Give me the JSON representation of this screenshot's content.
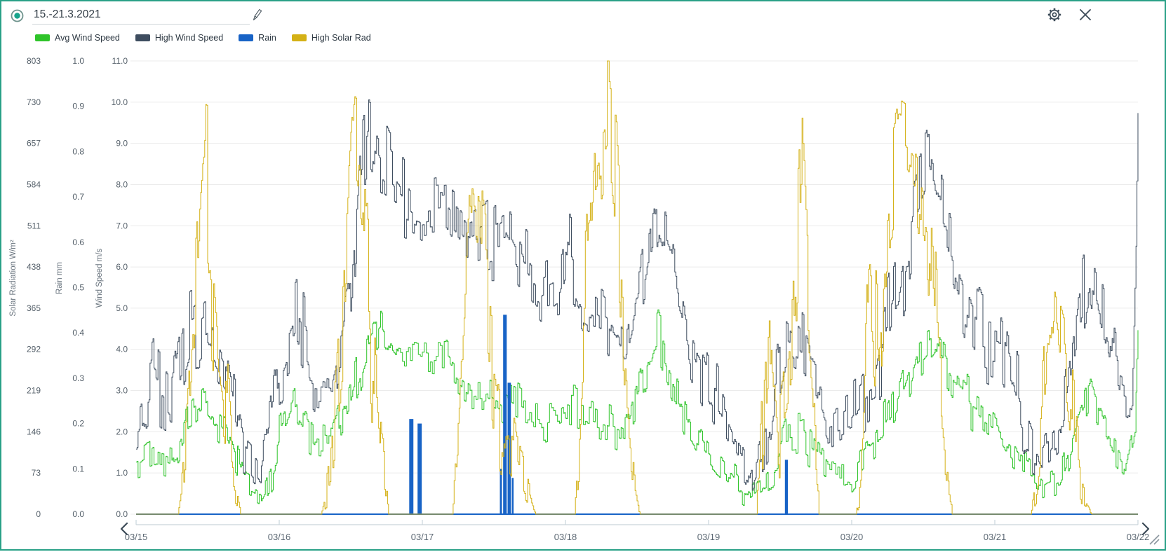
{
  "header": {
    "title_value": "15.-21.3.2021"
  },
  "legend": {
    "items": [
      {
        "label": "Avg Wind Speed",
        "color": "#2fc42a"
      },
      {
        "label": "High Wind Speed",
        "color": "#3e4d5f"
      },
      {
        "label": "Rain",
        "color": "#1863c6"
      },
      {
        "label": "High Solar Rad",
        "color": "#d4b116"
      }
    ]
  },
  "colors": {
    "accent_teal": "#2aa187",
    "icon_dark": "#3e4c59",
    "grid_line": "#ebebeb",
    "axis_line": "#c9d4db",
    "tick_text": "#55606a",
    "axis_title_text": "#6b7680",
    "date_text": "#5d6974"
  },
  "chart_data": {
    "type": "line",
    "title": "15.-21.3.2021",
    "x_axis": {
      "tick_labels": [
        "03/15",
        "03/16",
        "03/17",
        "03/18",
        "03/19",
        "03/20",
        "03/21",
        "03/22"
      ],
      "range_days": 7
    },
    "y_axes": [
      {
        "id": "solar",
        "title": "Solar Radiation W/m²",
        "min": 0,
        "max": 803,
        "ticks": [
          "803",
          "730",
          "657",
          "584",
          "511",
          "438",
          "365",
          "292",
          "219",
          "146",
          "73",
          "0"
        ]
      },
      {
        "id": "rain",
        "title": "Rain mm",
        "min": 0,
        "max": 1,
        "ticks": [
          "1.0",
          "0.9",
          "0.8",
          "0.7",
          "0.6",
          "0.5",
          "0.4",
          "0.3",
          "0.2",
          "0.1",
          "0.0"
        ]
      },
      {
        "id": "wind",
        "title": "Wind Speed m/s",
        "min": 0,
        "max": 11,
        "ticks": [
          "11.0",
          "10.0",
          "9.0",
          "8.0",
          "7.0",
          "6.0",
          "5.0",
          "4.0",
          "3.0",
          "2.0",
          "1.0",
          "0.0"
        ]
      }
    ],
    "grid": {
      "rows": 11,
      "legend_position": "top-left"
    },
    "sampling": {
      "step_minutes": 10,
      "total_hours": 168,
      "seed": 2021
    },
    "series": [
      {
        "name": "Avg Wind Speed",
        "axis": "wind",
        "color": "#2fc42a",
        "style": "step",
        "envelope": [
          [
            0,
            1.2,
            0.5
          ],
          [
            3,
            1.5,
            0.6
          ],
          [
            6,
            1.3,
            0.6
          ],
          [
            9,
            2.2,
            0.7
          ],
          [
            12,
            2.7,
            0.7
          ],
          [
            15,
            2.2,
            0.7
          ],
          [
            18,
            0.9,
            0.5
          ],
          [
            21,
            0.5,
            0.35
          ],
          [
            24,
            1.7,
            0.8
          ],
          [
            27,
            2.5,
            0.9
          ],
          [
            30,
            1.8,
            0.7
          ],
          [
            33,
            1.7,
            0.6
          ],
          [
            36,
            2.8,
            0.9
          ],
          [
            39,
            4.3,
            1.0
          ],
          [
            41,
            4.7,
            0.9
          ],
          [
            44,
            3.9,
            0.8
          ],
          [
            48,
            3.8,
            0.6
          ],
          [
            52,
            3.7,
            0.6
          ],
          [
            56,
            3.0,
            0.6
          ],
          [
            59,
            3.1,
            0.6
          ],
          [
            62,
            2.7,
            0.6
          ],
          [
            65,
            2.4,
            0.6
          ],
          [
            68,
            2.3,
            0.6
          ],
          [
            71,
            2.5,
            0.6
          ],
          [
            72,
            2.6,
            0.6
          ],
          [
            76,
            2.4,
            0.6
          ],
          [
            80,
            2.1,
            0.5
          ],
          [
            82,
            1.9,
            0.5
          ],
          [
            85,
            3.0,
            0.8
          ],
          [
            87.5,
            4.2,
            0.8
          ],
          [
            90,
            3.2,
            0.7
          ],
          [
            93,
            2.1,
            0.6
          ],
          [
            96,
            1.5,
            0.5
          ],
          [
            100,
            0.9,
            0.5
          ],
          [
            103,
            0.4,
            0.3
          ],
          [
            106,
            0.9,
            0.5
          ],
          [
            109,
            1.9,
            0.7
          ],
          [
            112,
            2.0,
            0.7
          ],
          [
            116,
            1.1,
            0.5
          ],
          [
            120,
            1.0,
            0.5
          ],
          [
            124,
            1.6,
            0.6
          ],
          [
            128,
            2.7,
            0.8
          ],
          [
            131,
            3.9,
            0.9
          ],
          [
            134,
            4.4,
            0.8
          ],
          [
            137,
            3.5,
            0.8
          ],
          [
            140,
            2.6,
            0.7
          ],
          [
            144,
            1.9,
            0.6
          ],
          [
            148,
            1.2,
            0.5
          ],
          [
            152,
            0.7,
            0.4
          ],
          [
            155,
            1.0,
            0.5
          ],
          [
            158,
            2.3,
            0.8
          ],
          [
            160,
            3.0,
            0.7
          ],
          [
            163,
            2.0,
            0.6
          ],
          [
            166,
            1.3,
            0.5
          ],
          [
            167.5,
            2.2,
            0.6
          ],
          [
            168,
            4.6,
            0.3
          ]
        ]
      },
      {
        "name": "High Wind Speed",
        "axis": "wind",
        "color": "#3e4d5f",
        "style": "step",
        "envelope": [
          [
            0,
            2.2,
            0.8
          ],
          [
            3,
            3.3,
            1.2
          ],
          [
            6,
            2.6,
            0.9
          ],
          [
            9,
            4.2,
            1.3
          ],
          [
            12,
            4.7,
            1.2
          ],
          [
            15,
            3.8,
            1.0
          ],
          [
            18,
            1.9,
            0.8
          ],
          [
            21,
            1.2,
            0.6
          ],
          [
            24,
            3.4,
            1.2
          ],
          [
            27,
            4.5,
            1.4
          ],
          [
            30,
            3.2,
            0.9
          ],
          [
            33,
            3.1,
            0.9
          ],
          [
            36,
            5.2,
            1.5
          ],
          [
            37.5,
            8.2,
            1.8
          ],
          [
            39,
            9.3,
            1.6
          ],
          [
            41,
            8.6,
            1.4
          ],
          [
            42,
            8.4,
            1.3
          ],
          [
            45,
            7.7,
            1.2
          ],
          [
            48,
            7.2,
            0.9
          ],
          [
            52,
            7.3,
            0.9
          ],
          [
            56,
            6.4,
            0.9
          ],
          [
            59,
            6.6,
            1.0
          ],
          [
            62,
            7.0,
            1.4
          ],
          [
            65,
            6.0,
            1.0
          ],
          [
            68,
            5.4,
            0.9
          ],
          [
            71,
            5.7,
            1.0
          ],
          [
            72,
            6.3,
            1.3
          ],
          [
            75,
            5.2,
            0.9
          ],
          [
            79,
            4.7,
            0.8
          ],
          [
            82,
            3.9,
            0.8
          ],
          [
            85,
            5.8,
            1.1
          ],
          [
            87.5,
            7.4,
            1.1
          ],
          [
            90,
            6.1,
            1.0
          ],
          [
            93,
            4.2,
            0.9
          ],
          [
            96,
            3.1,
            1.0
          ],
          [
            100,
            1.8,
            0.8
          ],
          [
            103,
            0.9,
            0.6
          ],
          [
            106,
            2.1,
            1.0
          ],
          [
            109,
            4.3,
            1.2
          ],
          [
            112,
            3.7,
            1.0
          ],
          [
            116,
            2.3,
            0.8
          ],
          [
            120,
            2.7,
            0.9
          ],
          [
            124,
            3.5,
            1.1
          ],
          [
            128,
            5.5,
            1.4
          ],
          [
            131,
            7.7,
            1.5
          ],
          [
            133,
            8.5,
            1.5
          ],
          [
            136,
            6.9,
            1.3
          ],
          [
            139,
            5.2,
            1.2
          ],
          [
            142,
            4.2,
            1.2
          ],
          [
            145,
            4.0,
            1.4
          ],
          [
            149,
            2.2,
            1.0
          ],
          [
            152,
            1.3,
            0.7
          ],
          [
            155,
            1.9,
            0.9
          ],
          [
            158,
            4.6,
            1.3
          ],
          [
            160,
            5.8,
            1.1
          ],
          [
            163,
            4.2,
            1.0
          ],
          [
            165,
            3.0,
            0.9
          ],
          [
            167,
            2.7,
            0.9
          ],
          [
            167.6,
            6.0,
            1.2
          ],
          [
            168,
            9.7,
            0.3
          ]
        ]
      },
      {
        "name": "Rain",
        "axis": "rain",
        "color": "#1863c6",
        "style": "bars",
        "baseline": 0,
        "events": [
          [
            45.8,
            46.5,
            0.21
          ],
          [
            47.2,
            47.9,
            0.2
          ],
          [
            61.0,
            61.35,
            0.1
          ],
          [
            61.55,
            62.15,
            0.44
          ],
          [
            62.3,
            62.85,
            0.29
          ],
          [
            63.0,
            63.3,
            0.08
          ],
          [
            108.8,
            109.3,
            0.12
          ]
        ]
      },
      {
        "name": "High Solar Rad",
        "axis": "solar",
        "color": "#d4b116",
        "style": "step",
        "envelope": [
          [
            0,
            0,
            0
          ],
          [
            7,
            0,
            0
          ],
          [
            8,
            60,
            50
          ],
          [
            10,
            330,
            180
          ],
          [
            11.5,
            600,
            170
          ],
          [
            12.5,
            540,
            240
          ],
          [
            14,
            300,
            160
          ],
          [
            16,
            90,
            70
          ],
          [
            17.5,
            0,
            0
          ],
          [
            31,
            0,
            0
          ],
          [
            32.5,
            90,
            70
          ],
          [
            34.5,
            330,
            190
          ],
          [
            36.5,
            690,
            110
          ],
          [
            38,
            640,
            160
          ],
          [
            39.5,
            380,
            200
          ],
          [
            41,
            120,
            90
          ],
          [
            42.3,
            0,
            0
          ],
          [
            53,
            0,
            0
          ],
          [
            54.5,
            220,
            150
          ],
          [
            56,
            600,
            140
          ],
          [
            58,
            490,
            200
          ],
          [
            60,
            300,
            180
          ],
          [
            62,
            180,
            130
          ],
          [
            64,
            100,
            80
          ],
          [
            66,
            30,
            30
          ],
          [
            67,
            0,
            0
          ],
          [
            73.5,
            0,
            0
          ],
          [
            75,
            260,
            180
          ],
          [
            77,
            640,
            160
          ],
          [
            79,
            690,
            120
          ],
          [
            80.5,
            490,
            220
          ],
          [
            82,
            240,
            150
          ],
          [
            83.5,
            60,
            50
          ],
          [
            84.5,
            0,
            0
          ],
          [
            104,
            0,
            0
          ],
          [
            105,
            180,
            140
          ],
          [
            106.5,
            470,
            240
          ],
          [
            108,
            150,
            120
          ],
          [
            110,
            290,
            240
          ],
          [
            111.5,
            580,
            250
          ],
          [
            113,
            230,
            170
          ],
          [
            114.5,
            0,
            0
          ],
          [
            120.7,
            0,
            0
          ],
          [
            122,
            140,
            100
          ],
          [
            123,
            490,
            200
          ],
          [
            124.5,
            300,
            150
          ],
          [
            126,
            540,
            150
          ],
          [
            128,
            670,
            90
          ],
          [
            130.5,
            630,
            110
          ],
          [
            132.5,
            560,
            180
          ],
          [
            134,
            290,
            150
          ],
          [
            135.5,
            100,
            80
          ],
          [
            136.8,
            0,
            0
          ],
          [
            150,
            0,
            0
          ],
          [
            151,
            70,
            60
          ],
          [
            152.5,
            240,
            120
          ],
          [
            154,
            395,
            60
          ],
          [
            155.5,
            320,
            120
          ],
          [
            157,
            170,
            100
          ],
          [
            158.5,
            55,
            45
          ],
          [
            160.2,
            0,
            0
          ],
          [
            168,
            0,
            0
          ]
        ]
      }
    ]
  },
  "nav": {
    "prev_label": "previous period",
    "next_label": "next period"
  }
}
